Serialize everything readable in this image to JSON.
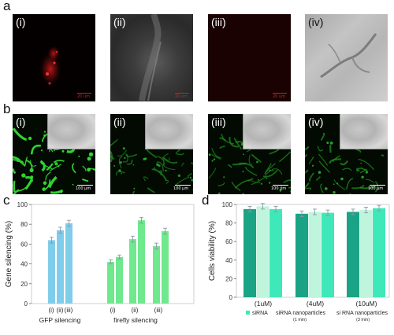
{
  "panel_a": {
    "letter": "a",
    "tiles": [
      {
        "label": "(i)",
        "kind": "red-fluor",
        "scale": "20 um"
      },
      {
        "label": "(ii)",
        "kind": "brightfield",
        "scale": "20 um"
      },
      {
        "label": "(iii)",
        "kind": "dark-red",
        "scale": "20 um"
      },
      {
        "label": "(iv)",
        "kind": "brightfield",
        "scale": ""
      }
    ]
  },
  "panel_b": {
    "letter": "b",
    "tiles": [
      {
        "label": "(i)",
        "scale": "100 µm"
      },
      {
        "label": "(ii)",
        "scale": "100 µm"
      },
      {
        "label": "(iii)",
        "scale": "100 µm"
      },
      {
        "label": "(iv)",
        "scale": "100 µm"
      }
    ]
  },
  "panel_c": {
    "letter": "c"
  },
  "panel_d": {
    "letter": "d"
  },
  "chart_data": [
    {
      "type": "bar",
      "ylabel": "Gene silencing (%)",
      "ylim": [
        0,
        100
      ],
      "yticks": [
        0,
        20,
        40,
        60,
        80,
        100
      ],
      "groups": [
        {
          "name": "GFP silencing",
          "tick_labels": [
            "(i)",
            "(ii)",
            "(iii)"
          ],
          "values": [
            64,
            74,
            81
          ],
          "errors": [
            3,
            3,
            3
          ],
          "color": "#7fcdea"
        },
        {
          "name": "firefly silencing (i)",
          "tick_labels": [
            "(i)"
          ],
          "values": [
            42,
            47
          ],
          "errors": [
            2,
            2
          ],
          "color": "#6fe88e"
        },
        {
          "name": "firefly silencing (ii)",
          "tick_labels": [
            "(ii)"
          ],
          "values": [
            65,
            84
          ],
          "errors": [
            3,
            3
          ],
          "color": "#6fe88e"
        },
        {
          "name": "firefly silencing (iii)",
          "tick_labels": [
            "(iii)"
          ],
          "values": [
            58,
            73
          ],
          "errors": [
            3,
            3
          ],
          "color": "#6fe88e"
        }
      ],
      "group_labels": [
        "GFP silencing",
        "firefly silencing"
      ]
    },
    {
      "type": "bar",
      "ylabel": "Cells viability (%)",
      "ylim": [
        0,
        100
      ],
      "yticks": [
        0,
        20,
        40,
        60,
        80,
        100
      ],
      "categories": [
        "(1uM)",
        "(4uM)",
        "(10uM)"
      ],
      "series": [
        {
          "name": "siRNA",
          "values": [
            95,
            90,
            92
          ],
          "errors": [
            3,
            3,
            3
          ],
          "color": "#1aa385"
        },
        {
          "name": "siRNA nanoparticles (1 min)",
          "values": [
            98,
            92,
            94
          ],
          "errors": [
            3,
            3,
            3
          ],
          "color": "#bff5dd"
        },
        {
          "name": "si RNA nanoparticles (3 min)",
          "values": [
            95,
            91,
            96
          ],
          "errors": [
            3,
            3,
            3
          ],
          "color": "#3fe8b9"
        }
      ],
      "legend": [
        {
          "text": "siRNA",
          "sub": ""
        },
        {
          "text": "siRNA nanoparticles",
          "sub": "(1 min)"
        },
        {
          "text": "si RNA nanoparticles",
          "sub": "(3 min)"
        }
      ],
      "legend_marker_color": "#3fe8b9"
    }
  ]
}
